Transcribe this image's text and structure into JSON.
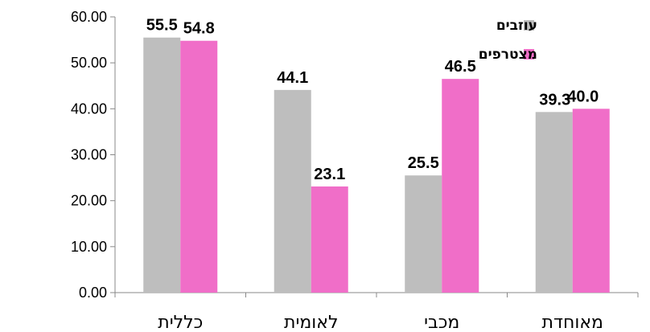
{
  "chart_data": {
    "type": "bar",
    "categories": [
      "כללית",
      "לאומית",
      "מכבי",
      "מאוחדת"
    ],
    "series": [
      {
        "name": "עוזבים",
        "values": [
          55.5,
          44.1,
          25.5,
          39.3
        ],
        "color": "#BEBEBE"
      },
      {
        "name": "מצטרפים",
        "values": [
          54.8,
          23.1,
          46.5,
          40.0
        ],
        "color": "#F06EC8"
      }
    ],
    "data_labels": [
      [
        "55.5",
        "44.1",
        "25.5",
        "39.3"
      ],
      [
        "54.8",
        "23.1",
        "46.5",
        "40.0"
      ]
    ],
    "yticks": [
      "0.00",
      "10.00",
      "20.00",
      "30.00",
      "40.00",
      "50.00",
      "60.00"
    ],
    "ylim": [
      0,
      60
    ],
    "title": "",
    "xlabel": "",
    "ylabel": "",
    "grid": false,
    "legend_position": "top-right"
  }
}
